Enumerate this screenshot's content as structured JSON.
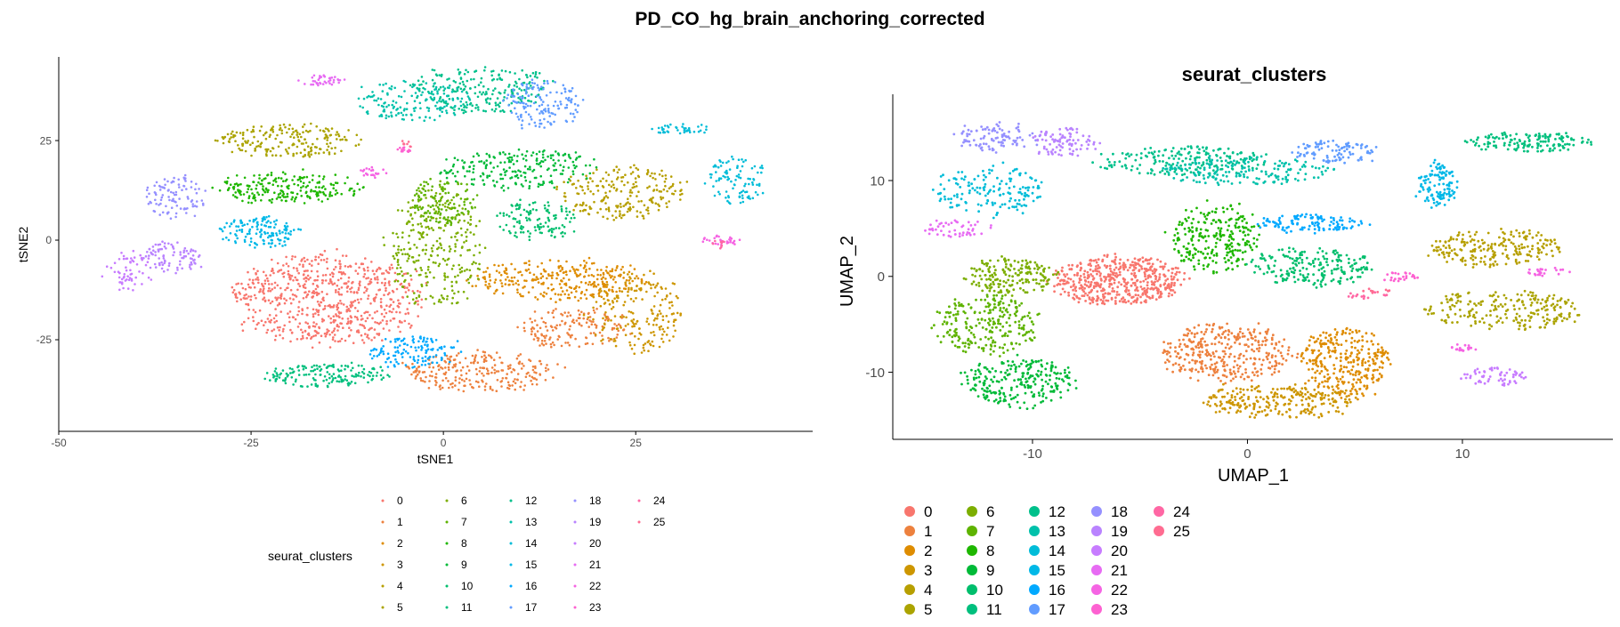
{
  "figure_title": "PD_CO_hg_brain_anchoring_corrected",
  "chart_data": [
    {
      "type": "scatter",
      "title": "",
      "xlabel": "tSNE1",
      "ylabel": "tSNE2",
      "xlim": [
        -50,
        48
      ],
      "ylim": [
        -48,
        46
      ],
      "xticks": [
        -50,
        -25,
        0,
        25
      ],
      "yticks": [
        25,
        0,
        -25
      ],
      "grid": false,
      "legend_title": "seurat_clusters",
      "legend_position": "bottom",
      "clusters": [
        {
          "name": "0",
          "color": "#F8766D",
          "blobs": [
            {
              "cx": -15,
              "cy": -15,
              "rx": 12,
              "ry": 11,
              "n": 700
            }
          ]
        },
        {
          "name": "1",
          "color": "#ED813E",
          "blobs": [
            {
              "cx": 5,
              "cy": -33,
              "rx": 10,
              "ry": 5,
              "n": 250
            },
            {
              "cx": 17,
              "cy": -22,
              "rx": 7,
              "ry": 5,
              "n": 150
            }
          ]
        },
        {
          "name": "2",
          "color": "#DE8C00",
          "blobs": [
            {
              "cx": 15,
              "cy": -10,
              "rx": 11,
              "ry": 5,
              "n": 300
            }
          ]
        },
        {
          "name": "3",
          "color": "#CD9600",
          "blobs": [
            {
              "cx": 25,
              "cy": -18,
              "rx": 6,
              "ry": 10,
              "n": 200
            }
          ]
        },
        {
          "name": "4",
          "color": "#B79F00",
          "blobs": [
            {
              "cx": 23,
              "cy": 12,
              "rx": 8,
              "ry": 7,
              "n": 220
            }
          ]
        },
        {
          "name": "5",
          "color": "#ABA300",
          "blobs": [
            {
              "cx": -20,
              "cy": 25,
              "rx": 9,
              "ry": 4,
              "n": 200
            }
          ]
        },
        {
          "name": "6",
          "color": "#7CAE00",
          "blobs": [
            {
              "cx": -1,
              "cy": -2,
              "rx": 6,
              "ry": 15,
              "n": 300
            }
          ]
        },
        {
          "name": "7",
          "color": "#5EB300",
          "blobs": [
            {
              "cx": 0,
              "cy": 10,
              "rx": 4,
              "ry": 6,
              "n": 120
            }
          ]
        },
        {
          "name": "8",
          "color": "#1EB700",
          "blobs": [
            {
              "cx": -20,
              "cy": 13,
              "rx": 9,
              "ry": 4,
              "n": 220
            }
          ]
        },
        {
          "name": "9",
          "color": "#00BA38",
          "blobs": [
            {
              "cx": 10,
              "cy": 18,
              "rx": 10,
              "ry": 5,
              "n": 220
            }
          ]
        },
        {
          "name": "10",
          "color": "#00BE6C",
          "blobs": [
            {
              "cx": 12,
              "cy": 5,
              "rx": 5,
              "ry": 5,
              "n": 120
            }
          ]
        },
        {
          "name": "11",
          "color": "#00BF7D",
          "blobs": [
            {
              "cx": -15,
              "cy": -34,
              "rx": 8,
              "ry": 3,
              "n": 160
            }
          ]
        },
        {
          "name": "12",
          "color": "#00C08B",
          "blobs": [
            {
              "cx": 5,
              "cy": 38,
              "rx": 9,
              "ry": 6,
              "n": 220
            }
          ]
        },
        {
          "name": "13",
          "color": "#00C1AB",
          "blobs": [
            {
              "cx": -4,
              "cy": 35,
              "rx": 7,
              "ry": 5,
              "n": 160
            }
          ]
        },
        {
          "name": "14",
          "color": "#00BCD8",
          "blobs": [
            {
              "cx": 38,
              "cy": 15,
              "rx": 4,
              "ry": 6,
              "n": 100
            },
            {
              "cx": 31,
              "cy": 28,
              "rx": 4,
              "ry": 1.5,
              "n": 40
            }
          ]
        },
        {
          "name": "15",
          "color": "#00B8E7",
          "blobs": [
            {
              "cx": -24,
              "cy": 2,
              "rx": 5,
              "ry": 4,
              "n": 140
            }
          ]
        },
        {
          "name": "16",
          "color": "#00A9FF",
          "blobs": [
            {
              "cx": -4,
              "cy": -28,
              "rx": 6,
              "ry": 4,
              "n": 130
            }
          ]
        },
        {
          "name": "17",
          "color": "#619CFF",
          "blobs": [
            {
              "cx": 13,
              "cy": 34,
              "rx": 5,
              "ry": 6,
              "n": 150
            }
          ]
        },
        {
          "name": "18",
          "color": "#9590FF",
          "blobs": [
            {
              "cx": -35,
              "cy": 11,
              "rx": 4,
              "ry": 5,
              "n": 100
            }
          ]
        },
        {
          "name": "19",
          "color": "#B983FF",
          "blobs": [
            {
              "cx": -35,
              "cy": -4,
              "rx": 4,
              "ry": 4,
              "n": 90
            }
          ]
        },
        {
          "name": "20",
          "color": "#C77CFF",
          "blobs": [
            {
              "cx": -41,
              "cy": -8,
              "rx": 3,
              "ry": 5,
              "n": 60
            }
          ]
        },
        {
          "name": "21",
          "color": "#E76BF3",
          "blobs": [
            {
              "cx": -16,
              "cy": 40,
              "rx": 3,
              "ry": 1.5,
              "n": 40
            }
          ]
        },
        {
          "name": "22",
          "color": "#F564E3",
          "blobs": [
            {
              "cx": -9,
              "cy": 17,
              "rx": 1.5,
              "ry": 1.5,
              "n": 25
            },
            {
              "cx": 36,
              "cy": 0,
              "rx": 2.5,
              "ry": 1.2,
              "n": 30
            }
          ]
        },
        {
          "name": "23",
          "color": "#FD61D1",
          "blobs": [
            {
              "cx": -5,
              "cy": 23,
              "rx": 1,
              "ry": 1,
              "n": 12
            }
          ]
        },
        {
          "name": "24",
          "color": "#FF67A4",
          "blobs": [
            {
              "cx": 36,
              "cy": -1,
              "rx": 1,
              "ry": 1,
              "n": 10
            }
          ]
        },
        {
          "name": "25",
          "color": "#FF6C91",
          "blobs": [
            {
              "cx": -5,
              "cy": 24,
              "rx": 1,
              "ry": 1,
              "n": 8
            }
          ]
        }
      ]
    },
    {
      "type": "scatter",
      "title": "seurat_clusters",
      "xlabel": "UMAP_1",
      "ylabel": "UMAP_2",
      "xlim": [
        -16.5,
        17
      ],
      "ylim": [
        -17,
        19
      ],
      "xticks": [
        -10,
        0,
        10
      ],
      "yticks": [
        10,
        0,
        -10
      ],
      "grid": false,
      "legend_title": "",
      "legend_position": "bottom",
      "clusters": [
        {
          "name": "0",
          "color": "#F8766D",
          "blobs": [
            {
              "cx": -6,
              "cy": -0.5,
              "rx": 3,
              "ry": 2.5,
              "n": 500
            }
          ]
        },
        {
          "name": "1",
          "color": "#ED813E",
          "blobs": [
            {
              "cx": -1,
              "cy": -8,
              "rx": 3,
              "ry": 3,
              "n": 350
            }
          ]
        },
        {
          "name": "2",
          "color": "#DE8C00",
          "blobs": [
            {
              "cx": 4.5,
              "cy": -9,
              "rx": 2,
              "ry": 3.5,
              "n": 300
            }
          ]
        },
        {
          "name": "3",
          "color": "#CD9600",
          "blobs": [
            {
              "cx": 1.5,
              "cy": -13,
              "rx": 3.5,
              "ry": 1.8,
              "n": 250
            }
          ]
        },
        {
          "name": "4",
          "color": "#B79F00",
          "blobs": [
            {
              "cx": 11.5,
              "cy": 3,
              "rx": 3,
              "ry": 2,
              "n": 220
            }
          ]
        },
        {
          "name": "5",
          "color": "#ABA300",
          "blobs": [
            {
              "cx": 12,
              "cy": -3.5,
              "rx": 3.5,
              "ry": 2,
              "n": 220
            }
          ]
        },
        {
          "name": "6",
          "color": "#7CAE00",
          "blobs": [
            {
              "cx": -11,
              "cy": 0,
              "rx": 2,
              "ry": 2,
              "n": 180
            }
          ]
        },
        {
          "name": "7",
          "color": "#5EB300",
          "blobs": [
            {
              "cx": -12,
              "cy": -5,
              "rx": 2.5,
              "ry": 3,
              "n": 250
            }
          ]
        },
        {
          "name": "8",
          "color": "#1EB700",
          "blobs": [
            {
              "cx": -1.5,
              "cy": 4,
              "rx": 2,
              "ry": 3.5,
              "n": 250
            }
          ]
        },
        {
          "name": "9",
          "color": "#00BA38",
          "blobs": [
            {
              "cx": -10.5,
              "cy": -11,
              "rx": 2.5,
              "ry": 2.5,
              "n": 250
            }
          ]
        },
        {
          "name": "10",
          "color": "#00BE6C",
          "blobs": [
            {
              "cx": 3,
              "cy": 1,
              "rx": 3,
              "ry": 2,
              "n": 200
            }
          ]
        },
        {
          "name": "11",
          "color": "#00BF7D",
          "blobs": [
            {
              "cx": 13,
              "cy": 14,
              "rx": 3,
              "ry": 1,
              "n": 150
            }
          ]
        },
        {
          "name": "12",
          "color": "#00C08B",
          "blobs": [
            {
              "cx": -3,
              "cy": 12,
              "rx": 4,
              "ry": 1.5,
              "n": 200
            }
          ]
        },
        {
          "name": "13",
          "color": "#00C1AB",
          "blobs": [
            {
              "cx": 0,
              "cy": 11,
              "rx": 4,
              "ry": 1.5,
              "n": 180
            }
          ]
        },
        {
          "name": "14",
          "color": "#00BCD8",
          "blobs": [
            {
              "cx": -12,
              "cy": 9,
              "rx": 2.5,
              "ry": 2.5,
              "n": 160
            }
          ]
        },
        {
          "name": "15",
          "color": "#00B8E7",
          "blobs": [
            {
              "cx": 8.8,
              "cy": 9.5,
              "rx": 0.9,
              "ry": 2.5,
              "n": 120
            }
          ]
        },
        {
          "name": "16",
          "color": "#00A9FF",
          "blobs": [
            {
              "cx": 3,
              "cy": 5.5,
              "rx": 2.5,
              "ry": 1,
              "n": 120
            }
          ]
        },
        {
          "name": "17",
          "color": "#619CFF",
          "blobs": [
            {
              "cx": 4,
              "cy": 13,
              "rx": 2,
              "ry": 1.2,
              "n": 100
            }
          ]
        },
        {
          "name": "18",
          "color": "#9590FF",
          "blobs": [
            {
              "cx": -11.5,
              "cy": 14.5,
              "rx": 2,
              "ry": 1.5,
              "n": 100
            }
          ]
        },
        {
          "name": "19",
          "color": "#B983FF",
          "blobs": [
            {
              "cx": -8.5,
              "cy": 14,
              "rx": 1.5,
              "ry": 1.5,
              "n": 90
            }
          ]
        },
        {
          "name": "20",
          "color": "#C77CFF",
          "blobs": [
            {
              "cx": 11.5,
              "cy": -10.5,
              "rx": 1.5,
              "ry": 1,
              "n": 60
            }
          ]
        },
        {
          "name": "21",
          "color": "#E76BF3",
          "blobs": [
            {
              "cx": -13.5,
              "cy": 5,
              "rx": 1.5,
              "ry": 1,
              "n": 50
            }
          ]
        },
        {
          "name": "22",
          "color": "#F564E3",
          "blobs": [
            {
              "cx": 10,
              "cy": -7.5,
              "rx": 0.6,
              "ry": 0.4,
              "n": 20
            },
            {
              "cx": 14,
              "cy": 0.5,
              "rx": 1,
              "ry": 0.5,
              "n": 25
            }
          ]
        },
        {
          "name": "23",
          "color": "#FD61D1",
          "blobs": [
            {
              "cx": 7,
              "cy": 0,
              "rx": 1,
              "ry": 0.5,
              "n": 25
            }
          ]
        },
        {
          "name": "24",
          "color": "#FF67A4",
          "blobs": [
            {
              "cx": 5.5,
              "cy": -2,
              "rx": 1,
              "ry": 0.4,
              "n": 15
            }
          ]
        },
        {
          "name": "25",
          "color": "#FF6C91",
          "blobs": [
            {
              "cx": 6,
              "cy": -1.5,
              "rx": 0.6,
              "ry": 0.3,
              "n": 10
            }
          ]
        }
      ]
    }
  ]
}
